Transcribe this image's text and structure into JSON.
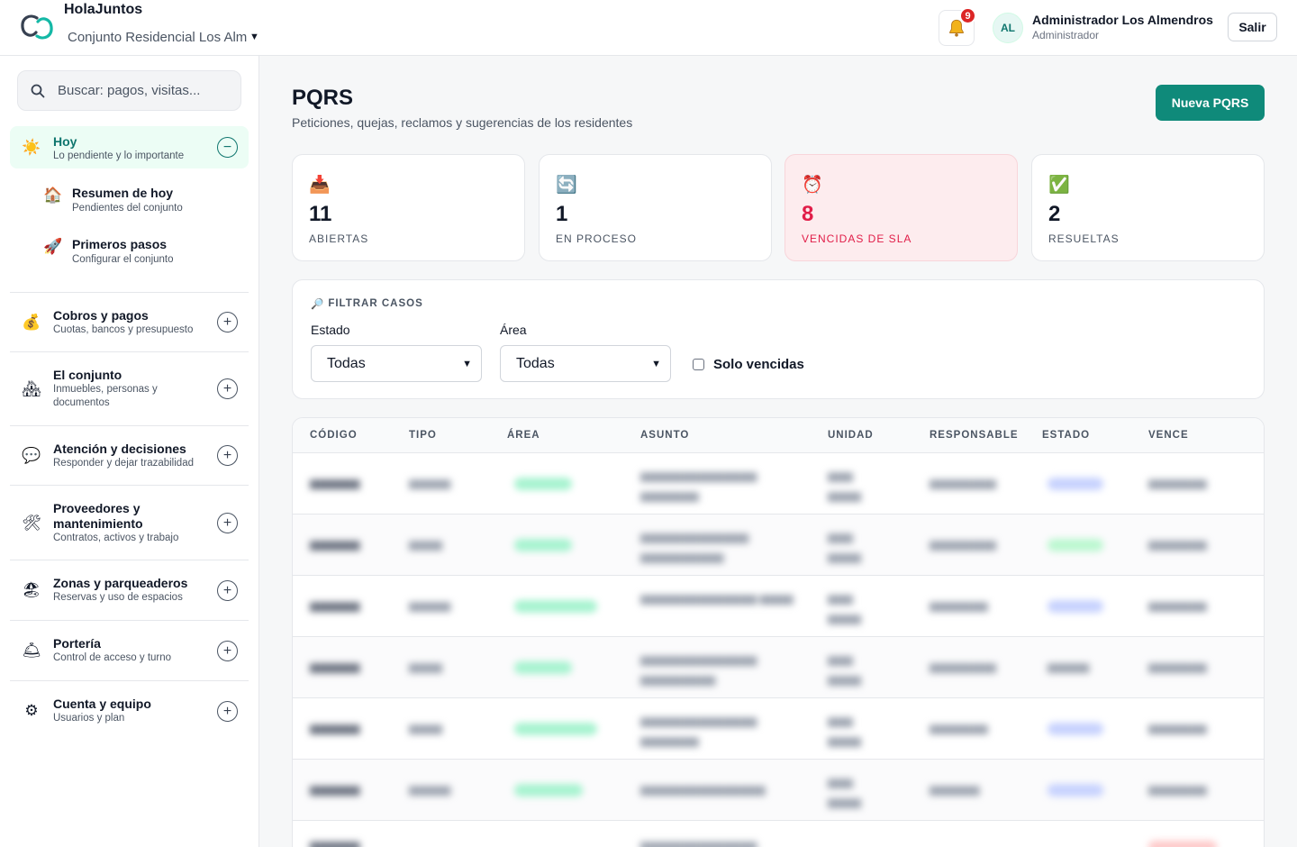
{
  "header": {
    "brand": "HolaJuntos",
    "conjunto": "Conjunto Residencial Los Alm",
    "notifications_count": "9",
    "avatar_initials": "AL",
    "user_name": "Administrador Los Almendros",
    "user_role": "Administrador",
    "logout_label": "Salir"
  },
  "sidebar": {
    "search_placeholder": "Buscar: pagos, visitas...",
    "today": {
      "title": "Hoy",
      "subtitle": "Lo pendiente y lo importante",
      "toggle": "−",
      "items": [
        {
          "icon": "house-icon",
          "emoji": "🏠",
          "title": "Resumen de hoy",
          "subtitle": "Pendientes del conjunto"
        },
        {
          "icon": "rocket-icon",
          "emoji": "🚀",
          "title": "Primeros pasos",
          "subtitle": "Configurar el conjunto"
        }
      ]
    },
    "groups": [
      {
        "icon": "money-bag-icon",
        "emoji": "💰",
        "title": "Cobros y pagos",
        "subtitle": "Cuotas, bancos y presupuesto",
        "toggle": "+"
      },
      {
        "icon": "houses-icon",
        "emoji": "🏘",
        "title": "El conjunto",
        "subtitle": "Inmuebles, personas y documentos",
        "toggle": "+"
      },
      {
        "icon": "speech-bubble-icon",
        "emoji": "💬",
        "title": "Atención y decisiones",
        "subtitle": "Responder y dejar trazabilidad",
        "toggle": "+"
      },
      {
        "icon": "tools-icon",
        "emoji": "🛠",
        "title": "Proveedores y mantenimiento",
        "subtitle": "Contratos, activos y trabajo",
        "toggle": "+"
      },
      {
        "icon": "beach-icon",
        "emoji": "🏖",
        "title": "Zonas y parqueaderos",
        "subtitle": "Reservas y uso de espacios",
        "toggle": "+"
      },
      {
        "icon": "service-bell-icon",
        "emoji": "🛎",
        "title": "Portería",
        "subtitle": "Control de acceso y turno",
        "toggle": "+"
      },
      {
        "icon": "gear-icon",
        "emoji": "⚙",
        "title": "Cuenta y equipo",
        "subtitle": "Usuarios y plan",
        "toggle": "+"
      }
    ]
  },
  "main": {
    "title": "PQRS",
    "subtitle": "Peticiones, quejas, reclamos y sugerencias de los residentes",
    "new_button": "Nueva PQRS",
    "stats": [
      {
        "icon": "inbox-tray-icon",
        "emoji": "📥",
        "value": "11",
        "label": "ABIERTAS"
      },
      {
        "icon": "refresh-icon",
        "emoji": "🔄",
        "value": "1",
        "label": "EN PROCESO"
      },
      {
        "icon": "alarm-clock-icon",
        "emoji": "⏰",
        "value": "8",
        "label": "VENCIDAS DE SLA"
      },
      {
        "icon": "check-mark-icon",
        "emoji": "✅",
        "value": "2",
        "label": "RESUELTAS"
      }
    ],
    "filters": {
      "heading": "FILTRAR CASOS",
      "estado_label": "Estado",
      "estado_value": "Todas",
      "area_label": "Área",
      "area_value": "Todas",
      "overdue_label": "Solo vencidas"
    },
    "table": {
      "headers": [
        "CÓDIGO",
        "TIPO",
        "ÁREA",
        "ASUNTO",
        "UNIDAD",
        "RESPONSABLE",
        "ESTADO",
        "VENCE"
      ]
    }
  },
  "colors": {
    "accent": "#0f8a7a",
    "danger": "#e11d48",
    "danger_bg": "#fdecee",
    "badge": "#dc2626"
  }
}
